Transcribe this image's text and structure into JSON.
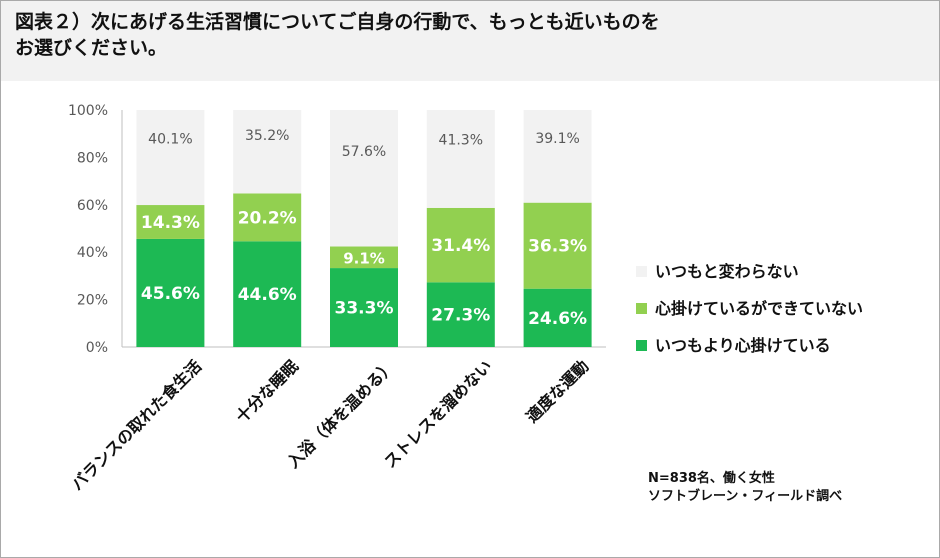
{
  "title": {
    "line1": "図表２）次にあげる生活習慣についてご自身の行動で、もっとも近いものを",
    "line2": "お選びください。"
  },
  "note": {
    "line1": "N=838名、働く女性",
    "line2": "ソフトブレーン・フィールド調べ"
  },
  "chart_data": {
    "type": "bar",
    "stacked": true,
    "percent": true,
    "title": "図表２）次にあげる生活習慣についてご自身の行動で、もっとも近いものをお選びください。",
    "xlabel": "",
    "ylabel": "",
    "ylim": [
      0,
      100
    ],
    "yticks": [
      "0%",
      "20%",
      "40%",
      "60%",
      "80%",
      "100%"
    ],
    "grid": false,
    "legend_position": "right",
    "categories": [
      "バランスの取れた食生活",
      "十分な睡眠",
      "入浴（体を温める）",
      "ストレスを溜めない",
      "適度な運動"
    ],
    "series": [
      {
        "name": "いつもより心掛けている",
        "color": "#1db954",
        "label_color": "#ffffff",
        "values": [
          45.6,
          44.6,
          33.3,
          27.3,
          24.6
        ],
        "labels": [
          "45.6%",
          "44.6%",
          "33.3%",
          "27.3%",
          "24.6%"
        ]
      },
      {
        "name": "心掛けているができていない",
        "color": "#92d050",
        "label_color": "#ffffff",
        "values": [
          14.3,
          20.2,
          9.1,
          31.4,
          36.3
        ],
        "labels": [
          "14.3%",
          "20.2%",
          "9.1%",
          "31.4%",
          "36.3%"
        ]
      },
      {
        "name": "いつもと変わらない",
        "color": "#f2f2f2",
        "label_color": "#595959",
        "values": [
          40.1,
          35.2,
          57.6,
          41.3,
          39.1
        ],
        "labels": [
          "40.1%",
          "35.2%",
          "57.6%",
          "41.3%",
          "39.1%"
        ]
      }
    ]
  }
}
